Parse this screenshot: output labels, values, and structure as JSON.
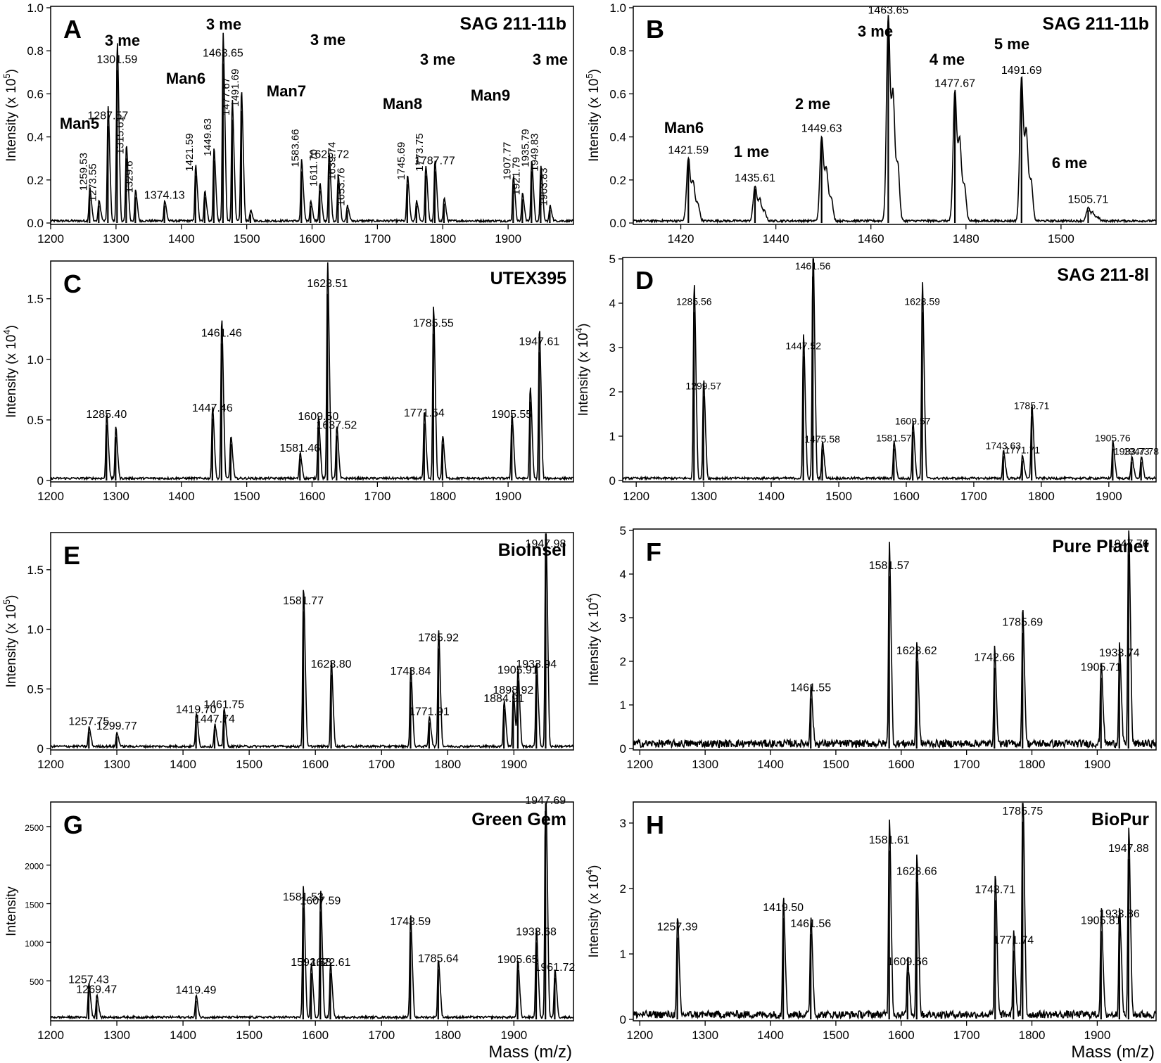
{
  "figure": {
    "xlabel_mass": "Mass (m/z)"
  },
  "chart_data": [
    {
      "panel": "A",
      "sample": "SAG 211-11b",
      "type": "line",
      "ylabel": "Intensity (x 10",
      "ylabel_exp": "5",
      "ylabel_end": ")",
      "xlim": [
        1200,
        2000
      ],
      "ylim": [
        0,
        1.0
      ],
      "xticks": [
        1200,
        1300,
        1400,
        1500,
        1600,
        1700,
        1800,
        1900
      ],
      "yticks": [
        0,
        0.2,
        0.4,
        0.6,
        0.8,
        1.0
      ],
      "ytick_labels": [
        "0.0",
        "0.2",
        "0.4",
        "0.6",
        "0.8",
        "1.0"
      ],
      "peaks": [
        {
          "x": 1259.53,
          "y": 0.13,
          "label": "1259.53",
          "rot": true
        },
        {
          "x": 1273.55,
          "y": 0.08,
          "label": "1273.55",
          "rot": true
        },
        {
          "x": 1287.57,
          "y": 0.45,
          "label": "1287.57"
        },
        {
          "x": 1301.59,
          "y": 0.71,
          "label": "1301.59"
        },
        {
          "x": 1315.61,
          "y": 0.3,
          "label": "1315.61",
          "rot": true
        },
        {
          "x": 1329.6,
          "y": 0.12,
          "label": "1329.6",
          "rot": true
        },
        {
          "x": 1374.13,
          "y": 0.08,
          "label": "1374.13"
        },
        {
          "x": 1421.59,
          "y": 0.22,
          "label": "1421.59",
          "rot": true
        },
        {
          "x": 1435.61,
          "y": 0.12
        },
        {
          "x": 1449.63,
          "y": 0.29,
          "label": "1449.63",
          "rot": true
        },
        {
          "x": 1463.65,
          "y": 0.74,
          "label": "1463.65"
        },
        {
          "x": 1477.67,
          "y": 0.48,
          "label": "1477.67",
          "rot": true
        },
        {
          "x": 1491.69,
          "y": 0.52,
          "label": "1491.69",
          "rot": true
        },
        {
          "x": 1505.7,
          "y": 0.04
        },
        {
          "x": 1583.66,
          "y": 0.24,
          "label": "1583.66",
          "rot": true
        },
        {
          "x": 1597.7,
          "y": 0.08
        },
        {
          "x": 1611.7,
          "y": 0.15,
          "label": "1611.70",
          "rot": true
        },
        {
          "x": 1625.72,
          "y": 0.27,
          "label": "1625.72"
        },
        {
          "x": 1639.74,
          "y": 0.18,
          "label": "1639.74",
          "rot": true
        },
        {
          "x": 1653.76,
          "y": 0.06,
          "label": "1653.76",
          "rot": true
        },
        {
          "x": 1745.69,
          "y": 0.18,
          "label": "1745.69",
          "rot": true
        },
        {
          "x": 1759.7,
          "y": 0.08
        },
        {
          "x": 1773.75,
          "y": 0.22,
          "label": "1773.75",
          "rot": true
        },
        {
          "x": 1787.77,
          "y": 0.24,
          "label": "1787.77"
        },
        {
          "x": 1801.8,
          "y": 0.09
        },
        {
          "x": 1907.77,
          "y": 0.18,
          "label": "1907.77",
          "rot": true
        },
        {
          "x": 1921.79,
          "y": 0.11,
          "label": "1921.79",
          "rot": true
        },
        {
          "x": 1935.79,
          "y": 0.24,
          "label": "1935.79",
          "rot": true
        },
        {
          "x": 1949.83,
          "y": 0.22,
          "label": "1949.83",
          "rot": true
        },
        {
          "x": 1963.83,
          "y": 0.06,
          "label": "1963.83",
          "rot": true
        }
      ],
      "annotations": [
        "Man5",
        "3 me",
        "Man6",
        "3 me",
        "Man7",
        "3 me",
        "Man8",
        "3 me",
        "Man9",
        "3 me"
      ]
    },
    {
      "panel": "B",
      "sample": "SAG 211-11b",
      "type": "line",
      "ylabel": "Intensity (x 10",
      "ylabel_exp": "5",
      "ylabel_end": ")",
      "xlim": [
        1410,
        1520
      ],
      "ylim": [
        0,
        1.0
      ],
      "xticks": [
        1420,
        1440,
        1460,
        1480,
        1500
      ],
      "yticks": [
        0,
        0.2,
        0.4,
        0.6,
        0.8,
        1.0
      ],
      "ytick_labels": [
        "0.0",
        "0.2",
        "0.4",
        "0.6",
        "0.8",
        "1.0"
      ],
      "peaks": [
        {
          "x": 1421.59,
          "y": 0.29,
          "label": "1421.59"
        },
        {
          "x": 1435.61,
          "y": 0.16,
          "label": "1435.61"
        },
        {
          "x": 1449.63,
          "y": 0.39,
          "label": "1449.63"
        },
        {
          "x": 1463.65,
          "y": 0.94,
          "label": "1463.65"
        },
        {
          "x": 1477.67,
          "y": 0.6,
          "label": "1477.67"
        },
        {
          "x": 1491.69,
          "y": 0.66,
          "label": "1491.69"
        },
        {
          "x": 1505.71,
          "y": 0.06,
          "label": "1505.71"
        }
      ],
      "annotations": [
        "Man6",
        "1 me",
        "2 me",
        "3 me",
        "4 me",
        "5 me",
        "6 me"
      ]
    },
    {
      "panel": "C",
      "sample": "UTEX395",
      "type": "line",
      "ylabel": "Intensity (x 10",
      "ylabel_exp": "4",
      "ylabel_end": ")",
      "xlim": [
        1200,
        2000
      ],
      "ylim": [
        0,
        1.8
      ],
      "xticks": [
        1200,
        1300,
        1400,
        1500,
        1600,
        1700,
        1800,
        1900
      ],
      "yticks": [
        0,
        0.5,
        1.0,
        1.5
      ],
      "ytick_labels": [
        "0",
        "0.5",
        "1.0",
        "1.5"
      ],
      "peaks": [
        {
          "x": 1285.4,
          "y": 0.46,
          "label": "1285.40"
        },
        {
          "x": 1299.4,
          "y": 0.36
        },
        {
          "x": 1447.46,
          "y": 0.51,
          "label": "1447.46"
        },
        {
          "x": 1461.46,
          "y": 1.13,
          "label": "1461.46"
        },
        {
          "x": 1475.5,
          "y": 0.3
        },
        {
          "x": 1581.46,
          "y": 0.18,
          "label": "1581.46"
        },
        {
          "x": 1609.5,
          "y": 0.44,
          "label": "1609.50"
        },
        {
          "x": 1623.51,
          "y": 1.54,
          "label": "1623.51"
        },
        {
          "x": 1637.52,
          "y": 0.37,
          "label": "1637.52"
        },
        {
          "x": 1771.54,
          "y": 0.47,
          "label": "1771.54"
        },
        {
          "x": 1785.55,
          "y": 1.21,
          "label": "1785.55"
        },
        {
          "x": 1799.6,
          "y": 0.3
        },
        {
          "x": 1905.55,
          "y": 0.46,
          "label": "1905.55"
        },
        {
          "x": 1933.6,
          "y": 0.65
        },
        {
          "x": 1947.61,
          "y": 1.06,
          "label": "1947.61"
        }
      ],
      "annotations": []
    },
    {
      "panel": "D",
      "sample": "SAG 211-8l",
      "type": "line",
      "ylabel": "Intensity (x 10",
      "ylabel_exp": "4",
      "ylabel_end": ")",
      "xlim": [
        1180,
        1970
      ],
      "ylim": [
        0,
        5
      ],
      "xticks": [
        1200,
        1300,
        1400,
        1500,
        1600,
        1700,
        1800,
        1900
      ],
      "yticks": [
        0,
        1,
        2,
        3,
        4,
        5
      ],
      "ytick_labels": [
        "0",
        "1",
        "2",
        "3",
        "4",
        "5"
      ],
      "peaks": [
        {
          "x": 1285.56,
          "y": 3.8,
          "label": "1285.56"
        },
        {
          "x": 1299.57,
          "y": 1.9,
          "label": "1299.57"
        },
        {
          "x": 1447.52,
          "y": 2.8,
          "label": "1447.52"
        },
        {
          "x": 1461.56,
          "y": 4.6,
          "label": "1461.56"
        },
        {
          "x": 1475.58,
          "y": 0.7,
          "label": "1475.58"
        },
        {
          "x": 1581.57,
          "y": 0.72,
          "label": "1581.57"
        },
        {
          "x": 1609.57,
          "y": 1.1,
          "label": "1609.57"
        },
        {
          "x": 1623.59,
          "y": 3.8,
          "label": "1623.59"
        },
        {
          "x": 1743.63,
          "y": 0.55,
          "label": "1743.63"
        },
        {
          "x": 1771.71,
          "y": 0.45,
          "label": "1771.71"
        },
        {
          "x": 1785.71,
          "y": 1.45,
          "label": "1785.71"
        },
        {
          "x": 1905.76,
          "y": 0.72,
          "label": "1905.76"
        },
        {
          "x": 1933.73,
          "y": 0.42,
          "label": "1933.73"
        },
        {
          "x": 1947.78,
          "y": 0.42,
          "label": "1947.78"
        }
      ],
      "annotations": []
    },
    {
      "panel": "E",
      "sample": "BioInsel",
      "type": "line",
      "ylabel": "Intensity (x 10",
      "ylabel_exp": "5",
      "ylabel_end": ")",
      "xlim": [
        1200,
        1990
      ],
      "ylim": [
        0,
        1.8
      ],
      "xticks": [
        1200,
        1300,
        1400,
        1500,
        1600,
        1700,
        1800,
        1900
      ],
      "yticks": [
        0,
        0.5,
        1.0,
        1.5
      ],
      "ytick_labels": [
        "0",
        "0.5",
        "1.0",
        "1.5"
      ],
      "peaks": [
        {
          "x": 1257.75,
          "y": 0.14,
          "label": "1257.75"
        },
        {
          "x": 1299.77,
          "y": 0.1,
          "label": "1299.77"
        },
        {
          "x": 1419.7,
          "y": 0.24,
          "label": "1419.70"
        },
        {
          "x": 1447.74,
          "y": 0.16,
          "label": "1447.74"
        },
        {
          "x": 1461.75,
          "y": 0.28,
          "label": "1461.75"
        },
        {
          "x": 1581.77,
          "y": 1.15,
          "label": "1581.77"
        },
        {
          "x": 1623.8,
          "y": 0.62,
          "label": "1623.80"
        },
        {
          "x": 1743.84,
          "y": 0.56,
          "label": "1743.84"
        },
        {
          "x": 1771.91,
          "y": 0.22,
          "label": "1771.91"
        },
        {
          "x": 1785.92,
          "y": 0.84,
          "label": "1785.92"
        },
        {
          "x": 1884.91,
          "y": 0.33,
          "label": "1884.91"
        },
        {
          "x": 1898.92,
          "y": 0.4,
          "label": "1898.92"
        },
        {
          "x": 1905.91,
          "y": 0.57,
          "label": "1905.91"
        },
        {
          "x": 1933.94,
          "y": 0.62,
          "label": "1933.94"
        },
        {
          "x": 1947.98,
          "y": 1.63,
          "label": "1947.98"
        }
      ],
      "annotations": []
    },
    {
      "panel": "F",
      "sample": "Pure Planet",
      "type": "line",
      "ylabel": "Intensity (x 10",
      "ylabel_exp": "4",
      "ylabel_end": ")",
      "xlim": [
        1190,
        1990
      ],
      "ylim": [
        0,
        5
      ],
      "xticks": [
        1200,
        1300,
        1400,
        1500,
        1600,
        1700,
        1800,
        1900
      ],
      "yticks": [
        0,
        1,
        2,
        3,
        4,
        5
      ],
      "ytick_labels": [
        "0",
        "1",
        "2",
        "3",
        "4",
        "5"
      ],
      "peaks": [
        {
          "x": 1461.55,
          "y": 1.15,
          "label": "1461.55"
        },
        {
          "x": 1581.57,
          "y": 3.95,
          "label": "1581.57"
        },
        {
          "x": 1623.62,
          "y": 2.0,
          "label": "1623.62"
        },
        {
          "x": 1742.66,
          "y": 1.85,
          "label": "1742.66"
        },
        {
          "x": 1785.69,
          "y": 2.65,
          "label": "1785.69"
        },
        {
          "x": 1905.71,
          "y": 1.62,
          "label": "1905.71"
        },
        {
          "x": 1933.74,
          "y": 1.95,
          "label": "1933.74"
        },
        {
          "x": 1947.76,
          "y": 4.45,
          "label": "1947.76"
        }
      ],
      "annotations": []
    },
    {
      "panel": "G",
      "sample": "Green Gem",
      "type": "line",
      "ylabel": "Intensity",
      "ylabel_exp": "",
      "ylabel_end": "",
      "xlim": [
        1200,
        1990
      ],
      "ylim": [
        0,
        2800
      ],
      "xticks": [
        1200,
        1300,
        1400,
        1500,
        1600,
        1700,
        1800,
        1900
      ],
      "yticks": [
        500,
        1000,
        1500,
        2000,
        2500
      ],
      "ytick_labels": [
        "500",
        "1000",
        "1500",
        "2000",
        "2500"
      ],
      "peaks": [
        {
          "x": 1257.43,
          "y": 380,
          "label": "1257.43"
        },
        {
          "x": 1269.47,
          "y": 250,
          "label": "1269.47"
        },
        {
          "x": 1419.49,
          "y": 240,
          "label": "1419.49"
        },
        {
          "x": 1581.53,
          "y": 1450,
          "label": "1581.53"
        },
        {
          "x": 1593.58,
          "y": 600,
          "label": "1593.58"
        },
        {
          "x": 1607.59,
          "y": 1400,
          "label": "1607.59"
        },
        {
          "x": 1622.61,
          "y": 600,
          "label": "1622.61"
        },
        {
          "x": 1743.59,
          "y": 1130,
          "label": "1743.59"
        },
        {
          "x": 1785.64,
          "y": 650,
          "label": "1785.64"
        },
        {
          "x": 1905.65,
          "y": 640,
          "label": "1905.65"
        },
        {
          "x": 1933.68,
          "y": 1000,
          "label": "1933.68"
        },
        {
          "x": 1947.69,
          "y": 2700,
          "label": "1947.69"
        },
        {
          "x": 1961.72,
          "y": 540,
          "label": "1961.72"
        }
      ],
      "annotations": []
    },
    {
      "panel": "H",
      "sample": "BioPur",
      "type": "line",
      "ylabel": "Intensity (x 10",
      "ylabel_exp": "4",
      "ylabel_end": ")",
      "xlim": [
        1190,
        1990
      ],
      "ylim": [
        0,
        3.3
      ],
      "xticks": [
        1200,
        1300,
        1400,
        1500,
        1600,
        1700,
        1800,
        1900
      ],
      "yticks": [
        0,
        1,
        2,
        3
      ],
      "ytick_labels": [
        "0",
        "1",
        "2",
        "3"
      ],
      "peaks": [
        {
          "x": 1257.39,
          "y": 1.25,
          "label": "1257.39"
        },
        {
          "x": 1419.5,
          "y": 1.55,
          "label": "1419.50"
        },
        {
          "x": 1461.56,
          "y": 1.3,
          "label": "1461.56"
        },
        {
          "x": 1581.61,
          "y": 2.58,
          "label": "1581.61"
        },
        {
          "x": 1609.66,
          "y": 0.72,
          "label": "1609.66"
        },
        {
          "x": 1623.66,
          "y": 2.1,
          "label": "1623.66"
        },
        {
          "x": 1743.71,
          "y": 1.82,
          "label": "1743.71"
        },
        {
          "x": 1771.74,
          "y": 1.05,
          "label": "1771.74"
        },
        {
          "x": 1785.75,
          "y": 3.02,
          "label": "1785.75"
        },
        {
          "x": 1905.81,
          "y": 1.35,
          "label": "1905.81"
        },
        {
          "x": 1933.86,
          "y": 1.45,
          "label": "1933.86"
        },
        {
          "x": 1947.88,
          "y": 2.45,
          "label": "1947.88"
        }
      ],
      "annotations": []
    }
  ]
}
